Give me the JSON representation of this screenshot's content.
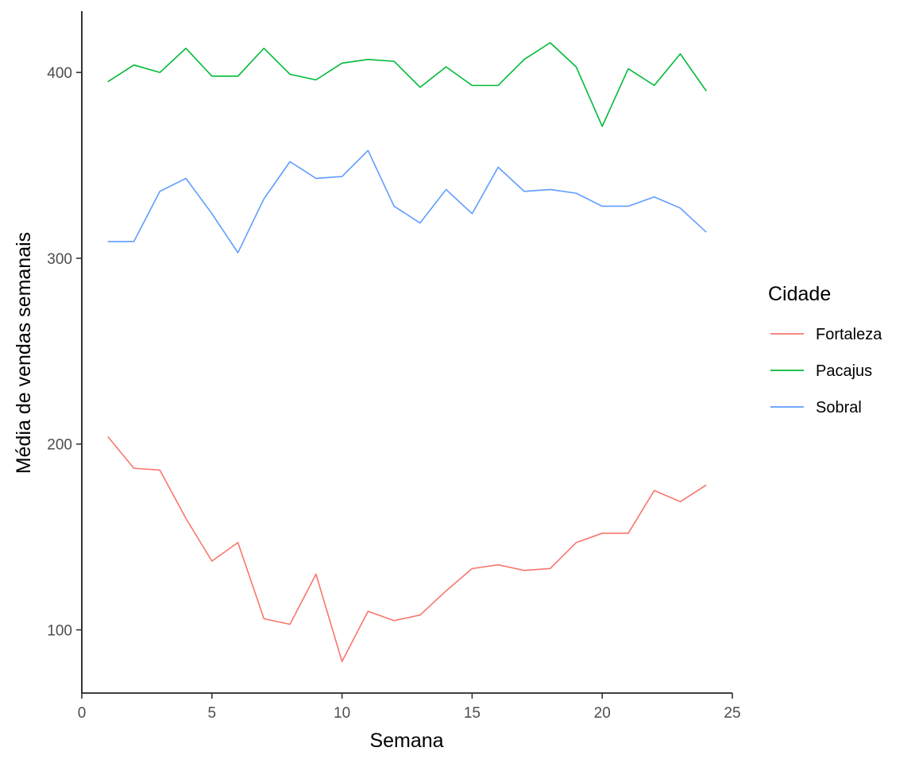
{
  "chart_data": {
    "type": "line",
    "xlabel": "Semana",
    "ylabel": "Média de vendas semanais",
    "xlim": [
      0,
      25
    ],
    "ylim": [
      66,
      433
    ],
    "x_ticks": [
      0,
      5,
      10,
      15,
      20,
      25
    ],
    "y_ticks": [
      100,
      200,
      300,
      400
    ],
    "x_tick_labels": [
      "0",
      "5",
      "10",
      "15",
      "20",
      "25"
    ],
    "y_tick_labels": [
      "100",
      "200",
      "300",
      "400"
    ],
    "grid": false,
    "legend": {
      "title": "Cidade",
      "position": "right"
    },
    "x": [
      1,
      2,
      3,
      4,
      5,
      6,
      7,
      8,
      9,
      10,
      11,
      12,
      13,
      14,
      15,
      16,
      17,
      18,
      19,
      20,
      21,
      22,
      23,
      24
    ],
    "series": [
      {
        "name": "Fortaleza",
        "color": "#F8766D",
        "values": [
          204,
          187,
          186,
          160,
          137,
          147,
          106,
          103,
          130,
          83,
          110,
          105,
          108,
          121,
          133,
          135,
          132,
          133,
          147,
          152,
          152,
          175,
          169,
          178
        ]
      },
      {
        "name": "Pacajus",
        "color": "#00BA38",
        "values": [
          395,
          404,
          400,
          413,
          398,
          398,
          413,
          399,
          396,
          405,
          407,
          406,
          392,
          403,
          393,
          393,
          407,
          416,
          403,
          371,
          402,
          393,
          410,
          390
        ]
      },
      {
        "name": "Sobral",
        "color": "#619CFF",
        "values": [
          309,
          309,
          336,
          343,
          324,
          303,
          332,
          352,
          343,
          344,
          358,
          328,
          319,
          337,
          324,
          349,
          336,
          337,
          335,
          328,
          328,
          333,
          327,
          314
        ]
      }
    ]
  }
}
